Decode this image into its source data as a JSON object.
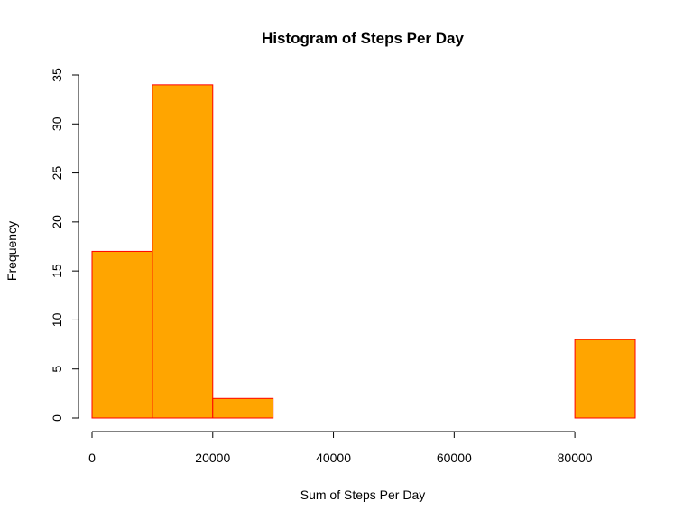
{
  "chart_data": {
    "type": "bar",
    "title": "Histogram of Steps Per Day",
    "xlabel": "Sum of Steps Per Day",
    "ylabel": "Frequency",
    "bins": [
      {
        "start": 0,
        "end": 10000,
        "count": 17
      },
      {
        "start": 10000,
        "end": 20000,
        "count": 34
      },
      {
        "start": 20000,
        "end": 30000,
        "count": 2
      },
      {
        "start": 30000,
        "end": 40000,
        "count": 0
      },
      {
        "start": 40000,
        "end": 50000,
        "count": 0
      },
      {
        "start": 50000,
        "end": 60000,
        "count": 0
      },
      {
        "start": 60000,
        "end": 70000,
        "count": 0
      },
      {
        "start": 70000,
        "end": 80000,
        "count": 0
      },
      {
        "start": 80000,
        "end": 90000,
        "count": 8
      }
    ],
    "xlim": [
      0,
      90000
    ],
    "ylim": [
      0,
      35
    ],
    "x_ticks": [
      0,
      20000,
      40000,
      60000,
      80000
    ],
    "x_tick_labels": [
      "0",
      "20000",
      "40000",
      "60000",
      "80000"
    ],
    "y_ticks": [
      0,
      5,
      10,
      15,
      20,
      25,
      30,
      35
    ],
    "y_tick_labels": [
      "0",
      "5",
      "10",
      "15",
      "20",
      "25",
      "30",
      "35"
    ],
    "grid": false,
    "legend": "none",
    "bar_fill": "#ffa500",
    "bar_border": "#ff0000"
  }
}
